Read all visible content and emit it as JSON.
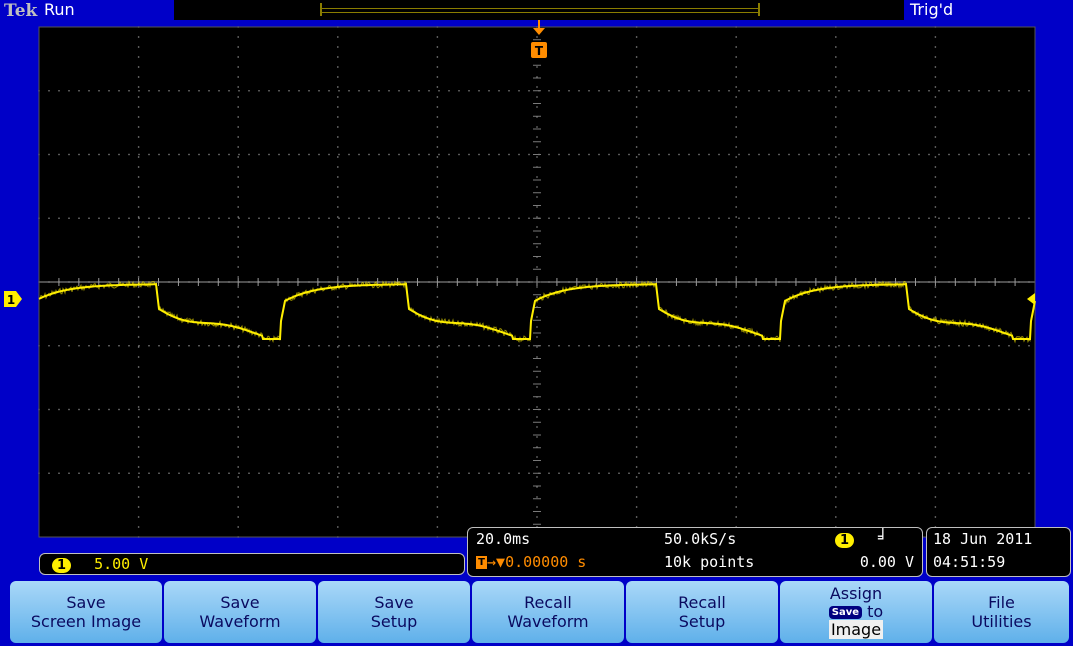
{
  "header": {
    "brand": "Tek",
    "status": "Run",
    "trigger_state": "Trig'd",
    "trigger_marker": "T",
    "trigger_marker_icon": "trigger-position-icon"
  },
  "channel": {
    "number": "1",
    "color": "#ffef00",
    "scale": "5.00 V"
  },
  "timebase": {
    "scale": "20.0ms",
    "sample_rate": "50.0kS/s",
    "trigger_delay": "0.00000 s",
    "record_length": "10k points",
    "trigger_source": "1",
    "trigger_slope_icon": "rising-edge-icon",
    "trigger_level": "0.00 V"
  },
  "datetime": {
    "date": "18 Jun 2011",
    "time": "04:51:59"
  },
  "menu": [
    {
      "line1": "Save",
      "line2": "Screen Image"
    },
    {
      "line1": "Save",
      "line2": "Waveform"
    },
    {
      "line1": "Save",
      "line2": "Setup"
    },
    {
      "line1": "Recall",
      "line2": "Waveform"
    },
    {
      "line1": "Recall",
      "line2": "Setup"
    },
    {
      "line1": "Assign",
      "chip": "Save",
      "mid": "to",
      "line3": "Image"
    },
    {
      "line1": "File",
      "line2": "Utilities"
    }
  ],
  "colors": {
    "background": "#0000c8",
    "graticule": "#000000",
    "trace": "#ffef00",
    "trigger": "#ff8c00",
    "menu": "#7cc3f2"
  }
}
